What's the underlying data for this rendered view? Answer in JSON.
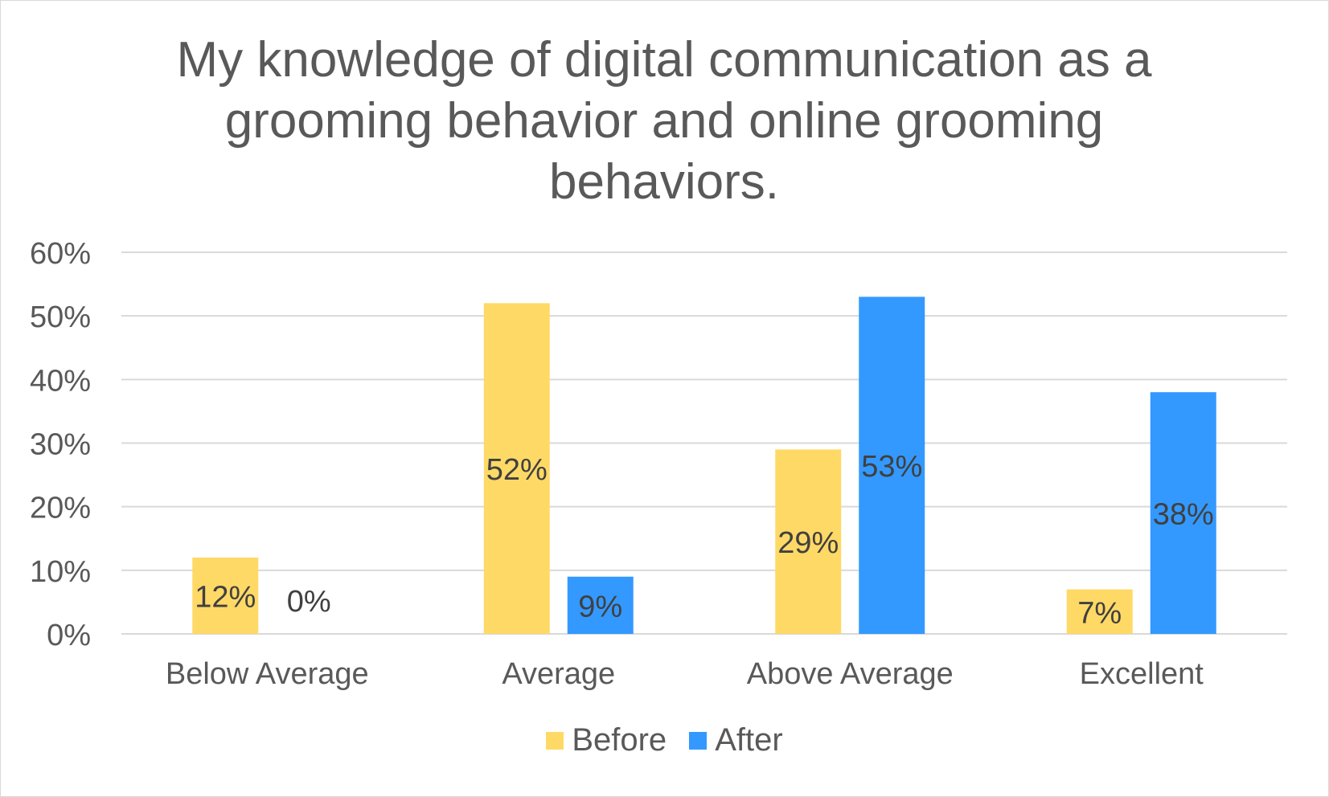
{
  "chart_data": {
    "type": "bar",
    "title": "My knowledge of digital communication as a grooming behavior and online grooming behaviors.",
    "categories": [
      "Below Average",
      "Average",
      "Above Average",
      "Excellent"
    ],
    "series": [
      {
        "name": "Before",
        "color": "#FFD966",
        "values": [
          12,
          52,
          29,
          7
        ],
        "labels": [
          "12%",
          "52%",
          "29%",
          "7%"
        ]
      },
      {
        "name": "After",
        "color": "#3399FF",
        "values": [
          0,
          9,
          53,
          38
        ],
        "labels": [
          "0%",
          "9%",
          "53%",
          "38%"
        ]
      }
    ],
    "ylim": [
      0,
      60
    ],
    "yticks": [
      0,
      10,
      20,
      30,
      40,
      50,
      60
    ],
    "ytick_labels": [
      "0%",
      "10%",
      "20%",
      "30%",
      "40%",
      "50%",
      "60%"
    ],
    "xlabel": "",
    "ylabel": "",
    "grid": true,
    "legend_position": "bottom",
    "colors": {
      "gridline": "#D9D9D9",
      "text": "#595959",
      "data_label": "#404040"
    }
  }
}
